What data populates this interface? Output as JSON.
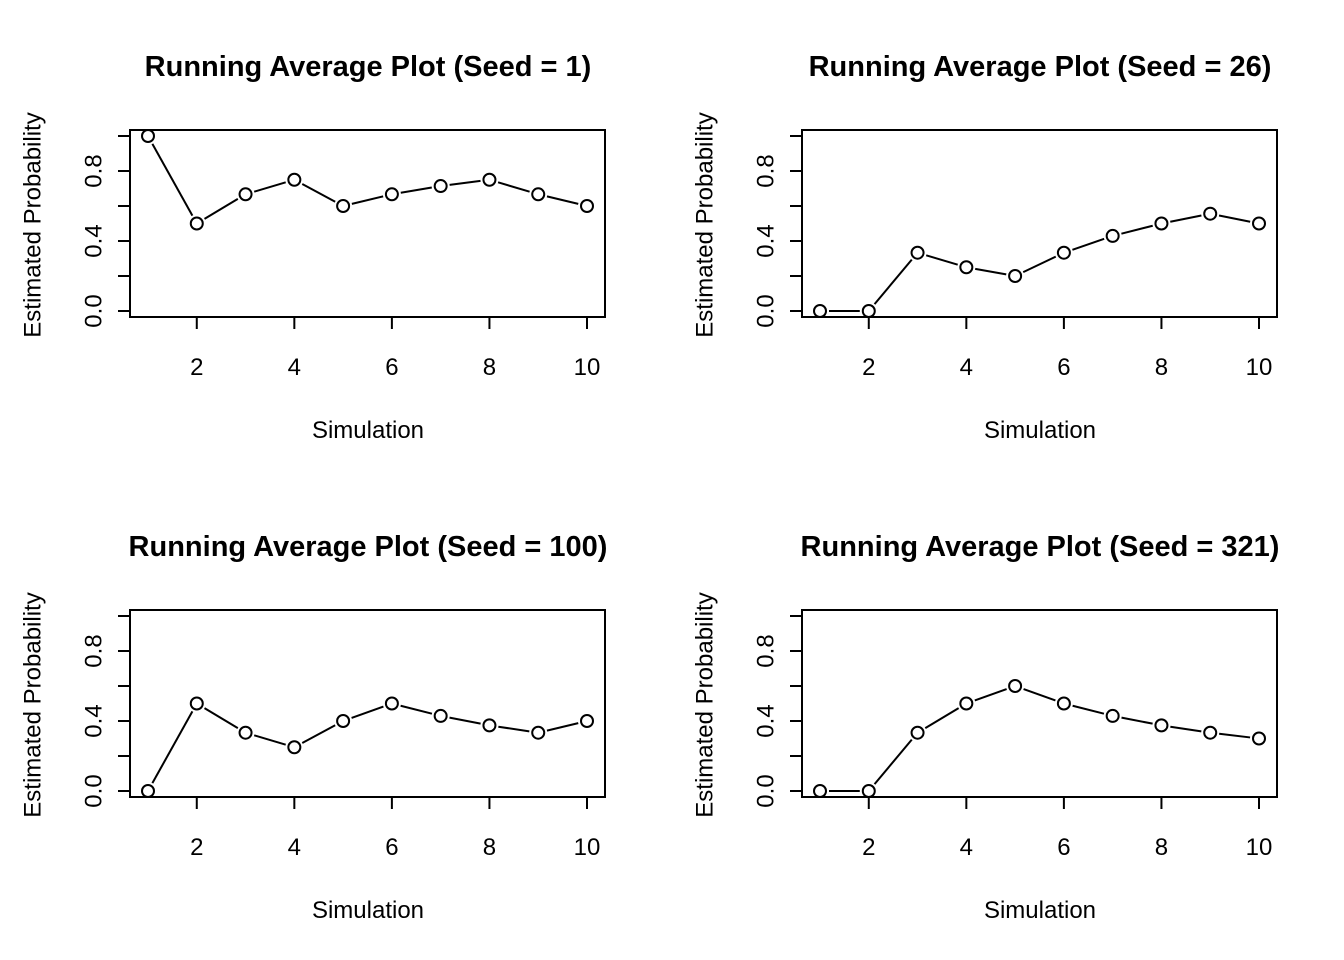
{
  "chart_data": [
    {
      "type": "line",
      "title": "Running Average Plot (Seed = 1)",
      "xlabel": "Simulation",
      "ylabel": "Estimated Probability",
      "x": [
        1,
        2,
        3,
        4,
        5,
        6,
        7,
        8,
        9,
        10
      ],
      "series": [
        {
          "values": [
            1.0,
            0.5,
            0.667,
            0.75,
            0.6,
            0.667,
            0.714,
            0.75,
            0.667,
            0.6
          ]
        }
      ],
      "xlim": [
        1,
        10
      ],
      "ylim": [
        0,
        1
      ],
      "xticks": [
        2,
        4,
        6,
        8,
        10
      ],
      "xtick_labels": [
        "2",
        "4",
        "6",
        "8",
        "10"
      ],
      "yticks": [
        0,
        0.2,
        0.4,
        0.6,
        0.8,
        1.0
      ],
      "ytick_labels": [
        "0.0",
        "",
        "0.4",
        "",
        "0.8",
        ""
      ],
      "grid": false
    },
    {
      "type": "line",
      "title": "Running Average Plot (Seed = 26)",
      "xlabel": "Simulation",
      "ylabel": "Estimated Probability",
      "x": [
        1,
        2,
        3,
        4,
        5,
        6,
        7,
        8,
        9,
        10
      ],
      "series": [
        {
          "values": [
            0.0,
            0.0,
            0.333,
            0.25,
            0.2,
            0.333,
            0.429,
            0.5,
            0.556,
            0.5
          ]
        }
      ],
      "xlim": [
        1,
        10
      ],
      "ylim": [
        0,
        1
      ],
      "xticks": [
        2,
        4,
        6,
        8,
        10
      ],
      "xtick_labels": [
        "2",
        "4",
        "6",
        "8",
        "10"
      ],
      "yticks": [
        0,
        0.2,
        0.4,
        0.6,
        0.8,
        1.0
      ],
      "ytick_labels": [
        "0.0",
        "",
        "0.4",
        "",
        "0.8",
        ""
      ],
      "grid": false
    },
    {
      "type": "line",
      "title": "Running Average Plot (Seed = 100)",
      "xlabel": "Simulation",
      "ylabel": "Estimated Probability",
      "x": [
        1,
        2,
        3,
        4,
        5,
        6,
        7,
        8,
        9,
        10
      ],
      "series": [
        {
          "values": [
            0.0,
            0.5,
            0.333,
            0.25,
            0.4,
            0.5,
            0.429,
            0.375,
            0.333,
            0.4
          ]
        }
      ],
      "xlim": [
        1,
        10
      ],
      "ylim": [
        0,
        1
      ],
      "xticks": [
        2,
        4,
        6,
        8,
        10
      ],
      "xtick_labels": [
        "2",
        "4",
        "6",
        "8",
        "10"
      ],
      "yticks": [
        0,
        0.2,
        0.4,
        0.6,
        0.8,
        1.0
      ],
      "ytick_labels": [
        "0.0",
        "",
        "0.4",
        "",
        "0.8",
        ""
      ],
      "grid": false
    },
    {
      "type": "line",
      "title": "Running Average Plot (Seed = 321)",
      "xlabel": "Simulation",
      "ylabel": "Estimated Probability",
      "x": [
        1,
        2,
        3,
        4,
        5,
        6,
        7,
        8,
        9,
        10
      ],
      "series": [
        {
          "values": [
            0.0,
            0.0,
            0.333,
            0.5,
            0.6,
            0.5,
            0.429,
            0.375,
            0.333,
            0.3
          ]
        }
      ],
      "xlim": [
        1,
        10
      ],
      "ylim": [
        0,
        1
      ],
      "xticks": [
        2,
        4,
        6,
        8,
        10
      ],
      "xtick_labels": [
        "2",
        "4",
        "6",
        "8",
        "10"
      ],
      "yticks": [
        0,
        0.2,
        0.4,
        0.6,
        0.8,
        1.0
      ],
      "ytick_labels": [
        "0.0",
        "",
        "0.4",
        "",
        "0.8",
        ""
      ],
      "grid": false
    }
  ]
}
